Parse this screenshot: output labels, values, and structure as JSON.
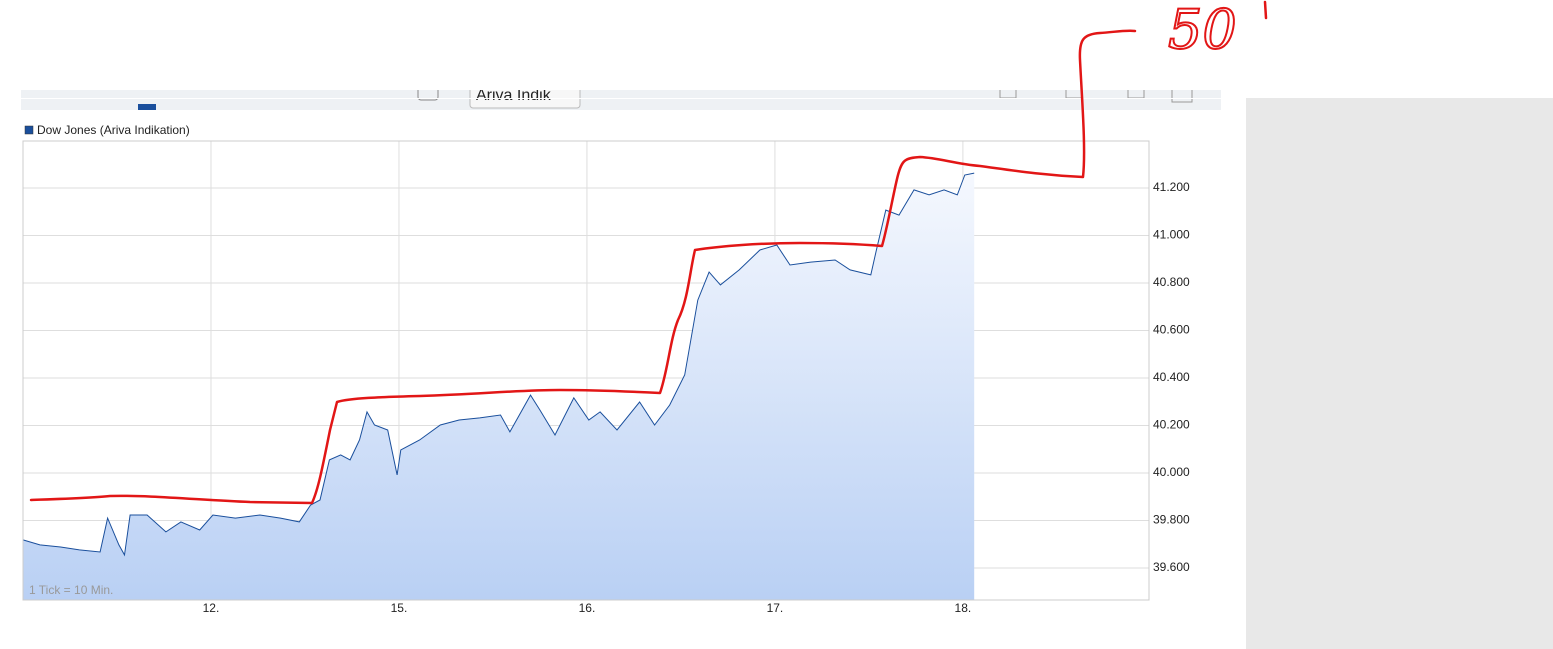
{
  "toolbar": {
    "source_select": "Ariva Indik"
  },
  "annotation": "50",
  "chart_data": {
    "type": "area",
    "series": [
      {
        "name": "Dow Jones (Ariva Indikation)",
        "color": "#1a4f9c",
        "values": [
          39718,
          39697,
          39688,
          39676,
          39667,
          39810,
          39697,
          39655,
          39823,
          39823,
          39752,
          39794,
          39760,
          39823,
          39810,
          39823,
          39810,
          39794,
          39865,
          39886,
          40055,
          40076,
          40055,
          40139,
          40257,
          40202,
          40181,
          39992,
          40097,
          40139,
          40202,
          40223,
          40232,
          40244,
          40173,
          40328,
          40265,
          40160,
          40316,
          40223,
          40257,
          40181,
          40299,
          40202,
          40286,
          40413,
          40728,
          40846,
          40792,
          40855,
          40939,
          40960,
          40876,
          40888,
          40897,
          40855,
          40834,
          40939,
          41107,
          41086,
          41192,
          41171,
          41192,
          41171,
          41255,
          41263
        ]
      }
    ],
    "x": [
      0,
      0.09,
      0.2,
      0.3,
      0.41,
      0.45,
      0.51,
      0.54,
      0.57,
      0.66,
      0.76,
      0.84,
      0.94,
      1.01,
      1.13,
      1.26,
      1.37,
      1.47,
      1.53,
      1.58,
      1.63,
      1.69,
      1.74,
      1.79,
      1.83,
      1.87,
      1.94,
      1.99,
      2.01,
      2.11,
      2.22,
      2.32,
      2.43,
      2.54,
      2.59,
      2.7,
      2.75,
      2.83,
      2.93,
      3.01,
      3.07,
      3.16,
      3.28,
      3.36,
      3.44,
      3.52,
      3.59,
      3.65,
      3.71,
      3.81,
      3.92,
      4.01,
      4.08,
      4.19,
      4.32,
      4.4,
      4.51,
      4.54,
      4.59,
      4.66,
      4.74,
      4.82,
      4.9,
      4.97,
      5.01,
      5.06
    ],
    "xlim": [
      0,
      5.99
    ],
    "xticks": [
      {
        "value": 1,
        "label": "12."
      },
      {
        "value": 2,
        "label": "15."
      },
      {
        "value": 3,
        "label": "16."
      },
      {
        "value": 4,
        "label": "17."
      },
      {
        "value": 5,
        "label": "18."
      }
    ],
    "ylim": [
      39465,
      41398
    ],
    "yticks": [
      {
        "value": 39600,
        "label": "39.600"
      },
      {
        "value": 39800,
        "label": "39.800"
      },
      {
        "value": 40000,
        "label": "40.000"
      },
      {
        "value": 40200,
        "label": "40.200"
      },
      {
        "value": 40400,
        "label": "40.400"
      },
      {
        "value": 40600,
        "label": "40.600"
      },
      {
        "value": 40800,
        "label": "40.800"
      },
      {
        "value": 41000,
        "label": "41.000"
      },
      {
        "value": 41200,
        "label": "41.200"
      }
    ],
    "grid": true,
    "note": "1 Tick = 10 Min."
  }
}
